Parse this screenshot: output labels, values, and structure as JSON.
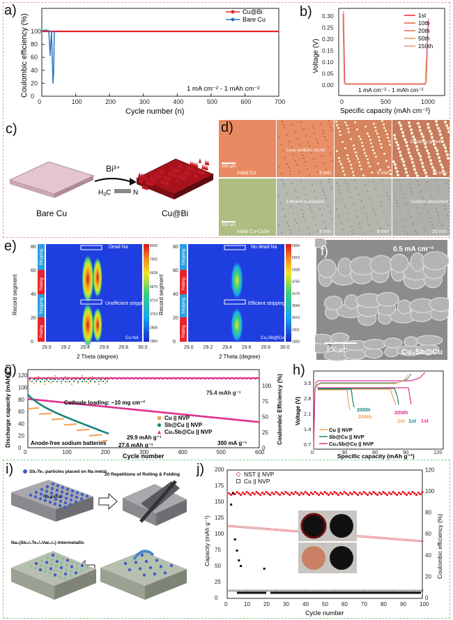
{
  "colors": {
    "red_box": "#e89a9a",
    "blue_box": "#8fb2dc",
    "green_box": "#8cc98c",
    "red": "#e8232a",
    "blue": "#2a77c0",
    "orange": "#f4a050",
    "teal": "#17847a",
    "magenta": "#e0308c",
    "darkred": "#c01a24"
  },
  "a": {
    "label": "a)",
    "ylabel": "Coulombic efficiency (%)",
    "xlabel": "Cycle number (n)",
    "xticks": [
      "0",
      "100",
      "200",
      "300",
      "400",
      "500",
      "600",
      "700"
    ],
    "yticks": [
      "0",
      "20",
      "40",
      "60",
      "80",
      "100"
    ],
    "legend": [
      "Cu@Bi",
      "Bare Cu"
    ],
    "annotation": "1 mA cm⁻² - 1 mAh cm⁻²"
  },
  "b": {
    "label": "b)",
    "ylabel": "Voltage (V)",
    "xlabel": "Specific capacity (mAh cm⁻²)",
    "xticks": [
      "0",
      "500",
      "1000"
    ],
    "yticks": [
      "0.00",
      "0.05",
      "0.10",
      "0.15",
      "0.20",
      "0.25",
      "0.30"
    ],
    "legend": [
      "1st",
      "10th",
      "20th",
      "50th",
      "150th"
    ],
    "annotation": "1 mA cm⁻² - 1 mAh cm⁻²"
  },
  "c": {
    "label": "c)",
    "bare": "Bare Cu",
    "coated": "Cu@Bi",
    "reagent": "Bi³⁺",
    "formula_h": "H",
    "formula_3": "3",
    "formula_c": "C",
    "formula_n": "N"
  },
  "d": {
    "label": "d)",
    "top": [
      "Initial Cu",
      "3 min",
      "5 min",
      "20 min"
    ],
    "bottom": [
      "Initial Cu-CuSe",
      "3 min",
      "9 min",
      "20 min"
    ],
    "top_notes": [
      "Less sodium nuclei",
      "Dendrite growth"
    ],
    "bottom_notes": [
      "Efficient nucleation",
      "Uniform deposition"
    ],
    "scale": [
      "200 μm",
      "200 μm"
    ]
  },
  "e": {
    "label": "e)",
    "ylabel": "Record segment",
    "xlabel": "2 Theta (degree)",
    "xticks": [
      "29.0",
      "29.2",
      "29.4",
      "29.6",
      "29.8",
      "30.0"
    ],
    "yticks": [
      "0",
      "20",
      "40",
      "60",
      "80"
    ],
    "segments": [
      "Plating",
      "Stripping",
      "Plating",
      "Stripping"
    ],
    "left_notes": [
      "Dead Na",
      "Unefficient stripping",
      "Cu foil"
    ],
    "right_notes": [
      "No dead Na",
      "Efficient stripping",
      "Cu₂Sb@Cu"
    ],
    "cbar_left": [
      "8500",
      "7692",
      "6628",
      "5675",
      "4719",
      "3763",
      "2806",
      "1850"
    ],
    "cbar_right": [
      "6500",
      "5919",
      "5338",
      "4756",
      "4175",
      "3594",
      "3013",
      "2431",
      "1850"
    ]
  },
  "f": {
    "label": "f)",
    "current": "0.5 mA cm⁻²",
    "scale": "100 μm",
    "sample": "Cu₂Sb@Cu"
  },
  "g": {
    "label": "g)",
    "ylabel": "Discharge capacity (mAh g⁻¹)",
    "ylabel2": "Coulombic Efficiency (%)",
    "xlabel": "Cycle number",
    "xticks": [
      "0",
      "100",
      "200",
      "300",
      "400",
      "500",
      "600"
    ],
    "yticks": [
      "0",
      "20",
      "40",
      "60",
      "80",
      "100",
      "120"
    ],
    "y2ticks": [
      "0",
      "25",
      "50",
      "75",
      "100"
    ],
    "legend": [
      "Cu || NVP",
      "Sb@Cu || NVP",
      "Cu₂Sb@Cu || NVP"
    ],
    "notes": [
      "Cathode loading: ~10 mg cm⁻²",
      "75.4 mAh g⁻¹",
      "29.9 mAh g⁻¹",
      "27.6 mAh g⁻¹",
      "Anode-free sodium batteries",
      "300 mA g⁻¹"
    ]
  },
  "h": {
    "label": "h)",
    "ylabel": "Voltage (V)",
    "xlabel": "Specific capacity (mAh g⁻¹)",
    "xticks": [
      "0",
      "30",
      "60",
      "90",
      "120"
    ],
    "yticks": [
      "0.7",
      "1.4",
      "2.1",
      "2.8",
      "3.5"
    ],
    "legend": [
      "Cu || NVP",
      "Sb@Cu || NVP",
      "Cu₂Sb@Cu || NVP"
    ],
    "notes": [
      "200th",
      "200th",
      "200th",
      "1st",
      "1st",
      "1st"
    ]
  },
  "i": {
    "label": "i)",
    "particles": "Sb₂Te₃ particles placed on Na metal",
    "metal": "Na metal",
    "process": "20 Repetitions of Rolling & Folding",
    "product": "Na₃(Sb₂/₃Te₁/₃Vac₁/₃) Intermetallic"
  },
  "j": {
    "label": "j)",
    "ylabel": "Capacity (mAh g⁻¹)",
    "ylabel2": "Coulombic efficiency (%)",
    "xlabel": "Cycle number",
    "xticks": [
      "0",
      "10",
      "20",
      "30",
      "40",
      "50",
      "60",
      "70",
      "80",
      "90",
      "100"
    ],
    "yticks": [
      "0",
      "25",
      "50",
      "75",
      "100",
      "125",
      "150",
      "175",
      "200"
    ],
    "y2ticks": [
      "0",
      "20",
      "40",
      "60",
      "80",
      "100",
      "120"
    ],
    "legend": [
      "NST || NVP",
      "Cu || NVP"
    ]
  }
}
